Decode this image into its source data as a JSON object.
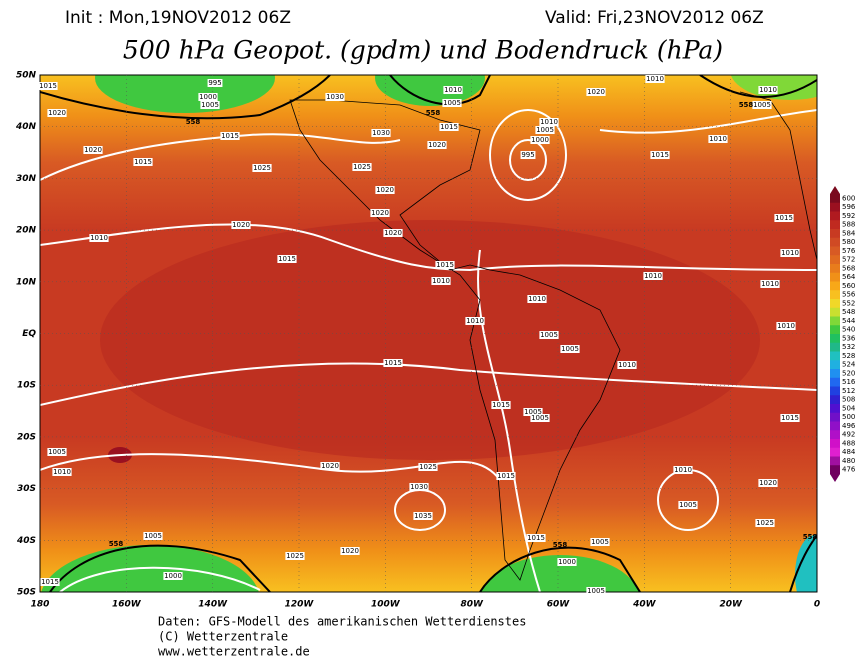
{
  "header": {
    "init": "Init : Mon,19NOV2012 06Z",
    "valid": "Valid: Fri,23NOV2012 06Z",
    "title": "500 hPa Geopot. (gpdm) und Bodendruck (hPa)"
  },
  "map": {
    "lat_labels": [
      "50N",
      "40N",
      "30N",
      "20N",
      "10N",
      "EQ",
      "10S",
      "20S",
      "30S",
      "40S",
      "50S"
    ],
    "lon_labels": [
      "180",
      "160W",
      "140W",
      "120W",
      "100W",
      "80W",
      "60W",
      "40W",
      "20W",
      "0"
    ],
    "contour_labels": [
      "1015",
      "1020",
      "1020",
      "1015",
      "1015",
      "1025",
      "1030",
      "1030",
      "1025",
      "1020",
      "1020",
      "1020",
      "1020",
      "1010",
      "1015",
      "1020",
      "1015",
      "1005",
      "1010",
      "995",
      "1000",
      "1005",
      "1010",
      "1020",
      "1015",
      "1010",
      "1010",
      "1010",
      "1005",
      "1015",
      "1010",
      "1010",
      "1010",
      "1010",
      "1015",
      "1010",
      "1010",
      "1010",
      "1005",
      "1005",
      "1010",
      "1015",
      "1015",
      "1005",
      "1005",
      "1015",
      "1005",
      "1020",
      "1025",
      "1030",
      "1035",
      "1015",
      "1010",
      "1010",
      "1005",
      "1020",
      "1025",
      "1005",
      "1000",
      "1025",
      "1020",
      "1015",
      "1000",
      "1005",
      "1005",
      "1015",
      "995",
      "1000",
      "1005",
      "558",
      "558",
      "558",
      "558",
      "558",
      "558"
    ]
  },
  "colorbar": {
    "labels": [
      600,
      596,
      592,
      588,
      584,
      580,
      576,
      572,
      568,
      564,
      560,
      556,
      552,
      548,
      544,
      540,
      536,
      532,
      528,
      524,
      520,
      516,
      512,
      508,
      504,
      500,
      496,
      492,
      488,
      484,
      480,
      476
    ],
    "colors": [
      "#7a0a1e",
      "#9a1020",
      "#b01a20",
      "#c02a20",
      "#c83a22",
      "#d04a24",
      "#d85a24",
      "#e06a20",
      "#e87c1c",
      "#f09018",
      "#f8a818",
      "#f8c020",
      "#f0d828",
      "#c8e030",
      "#80d838",
      "#40c840",
      "#20c060",
      "#20b888",
      "#20c0c0",
      "#20b0e0",
      "#2090f0",
      "#2068f0",
      "#2040e0",
      "#3020d0",
      "#5010d0",
      "#7010c8",
      "#9010c8",
      "#b010c8",
      "#d010c8",
      "#e020d0",
      "#a010a0",
      "#700060"
    ]
  },
  "footer": {
    "lines": [
      "Daten: GFS-Modell des amerikanischen Wetterdienstes",
      "(C) Wetterzentrale",
      "www.wetterzentrale.de"
    ]
  }
}
